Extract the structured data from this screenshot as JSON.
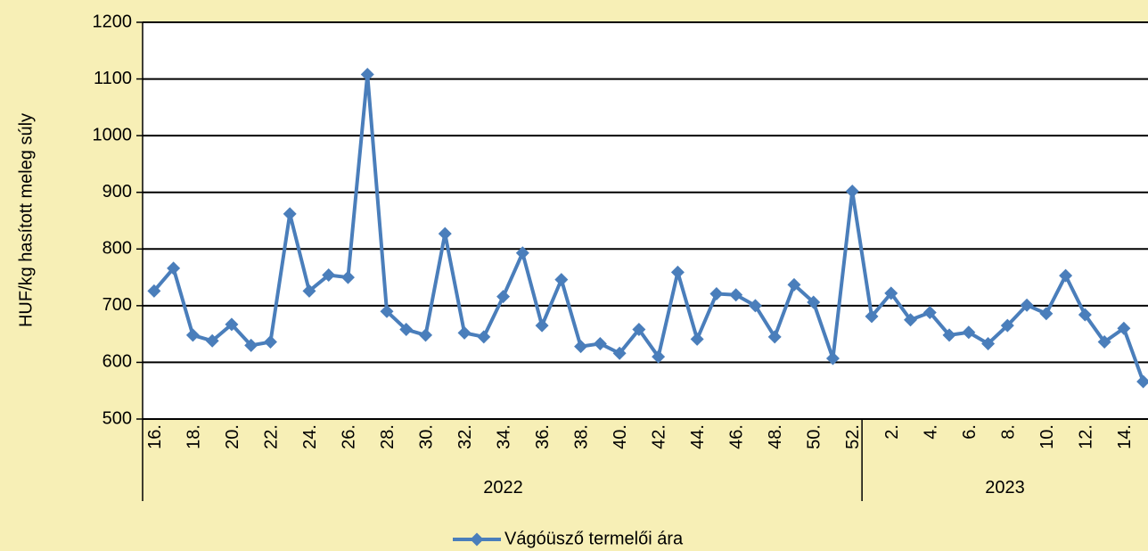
{
  "chart_data": {
    "type": "line",
    "y_label": "HUF/kg hasított meleg súly",
    "categories": [
      "16.",
      null,
      "18.",
      null,
      "20.",
      null,
      "22.",
      null,
      "24.",
      null,
      "26.",
      null,
      "28.",
      null,
      "30.",
      null,
      "32.",
      null,
      "34.",
      null,
      "36.",
      null,
      "38.",
      null,
      "40.",
      null,
      "42.",
      null,
      "44.",
      null,
      "46.",
      null,
      "48.",
      null,
      "50.",
      null,
      "52.",
      null,
      "2.",
      null,
      "4.",
      null,
      "6.",
      null,
      "8.",
      null,
      "10.",
      null,
      "12.",
      null,
      "14.",
      null
    ],
    "category_groups": [
      {
        "label": "2022",
        "count": 37
      },
      {
        "label": "2023",
        "count": 15
      }
    ],
    "series": [
      {
        "name": "Vágóüsző termelői ára",
        "color": "#4a7ebb",
        "values": [
          726,
          766,
          648,
          638,
          667,
          630,
          636,
          862,
          726,
          754,
          750,
          1108,
          690,
          658,
          648,
          827,
          652,
          645,
          716,
          793,
          665,
          746,
          628,
          633,
          616,
          658,
          610,
          759,
          641,
          721,
          719,
          700,
          645,
          737,
          706,
          607,
          902,
          681,
          722,
          675,
          688,
          648,
          653,
          633,
          665,
          701,
          686,
          753,
          684,
          636,
          660,
          566
        ]
      }
    ],
    "ylim": [
      500,
      1200
    ],
    "yticks": [
      500,
      600,
      700,
      800,
      900,
      1000,
      1100,
      1200
    ],
    "grid": true,
    "legend": "bottom"
  }
}
